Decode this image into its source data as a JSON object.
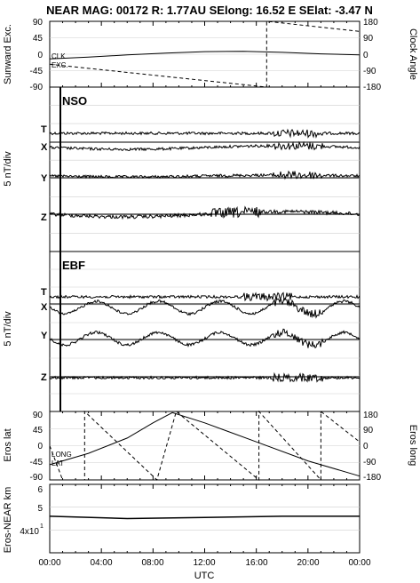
{
  "header": {
    "title": "NEAR MAG: 00172  R: 1.77AU  SElong:   16.52 E  SElat:   -3.47 N"
  },
  "chart_data": [
    {
      "type": "line",
      "panel": "sunward",
      "ylabel_left": "Sunward Exc.",
      "ylabel_right": "Clock Angle",
      "left_ticks": [
        "90",
        "45",
        "0",
        "-45",
        "-90"
      ],
      "right_ticks": [
        "180",
        "90",
        "0",
        "-90",
        "-180"
      ],
      "ylim_left": [
        -90,
        90
      ],
      "ylim_right": [
        -180,
        180
      ],
      "legend": [
        "CLK",
        "EXC."
      ],
      "series": [
        {
          "name": "CLK",
          "x_hours": [
            0,
            16.8,
            16.8,
            24
          ],
          "y": [
            -55,
            -180,
            180,
            125
          ]
        },
        {
          "name": "EXC.",
          "x_hours": [
            0,
            3,
            6,
            9,
            12,
            15,
            18,
            21,
            24
          ],
          "y": [
            -13,
            -8,
            -2,
            3,
            7,
            8,
            5,
            1,
            -2
          ]
        }
      ]
    },
    {
      "type": "line",
      "panel": "NSO",
      "label": "NSO",
      "ylabel": "5 nT/div",
      "trace_labels": [
        "T",
        "X",
        "Y",
        "Z"
      ]
    },
    {
      "type": "line",
      "panel": "EBF",
      "label": "EBF",
      "ylabel": "5 nT/div",
      "trace_labels": [
        "T",
        "X",
        "Y",
        "Z"
      ]
    },
    {
      "type": "line",
      "panel": "eros",
      "ylabel_left": "Eros lat",
      "ylabel_right": "Eros long",
      "left_ticks": [
        "90",
        "45",
        "0",
        "-45",
        "-90"
      ],
      "right_ticks": [
        "180",
        "90",
        "0",
        "-90",
        "-180"
      ],
      "ylim_left": [
        -90,
        90
      ],
      "ylim_right": [
        -180,
        180
      ],
      "legend": [
        "LONG",
        "LAT"
      ],
      "series": [
        {
          "name": "LAT",
          "x_hours": [
            0,
            3,
            6,
            8,
            9.5,
            12,
            16,
            20,
            24
          ],
          "y": [
            -50,
            -20,
            20,
            60,
            87,
            60,
            10,
            -40,
            -80
          ]
        },
        {
          "name": "LONG",
          "x_hours": [
            0,
            1,
            1,
            2.7,
            2.7,
            8.3,
            8.3,
            9.8,
            9.8,
            16.2,
            16.2,
            21,
            21,
            24
          ],
          "y": [
            0,
            -180,
            -180,
            -180,
            180,
            -180,
            -180,
            180,
            180,
            -180,
            180,
            -180,
            180,
            20
          ]
        }
      ]
    },
    {
      "type": "line",
      "panel": "distance",
      "ylabel": "Eros-NEAR km",
      "left_ticks": [
        "6",
        "5",
        "4x10"
      ],
      "tick_superscript": "1",
      "series": [
        {
          "name": "Eros-NEAR",
          "x_hours": [
            0,
            6,
            12,
            18,
            24
          ],
          "y": [
            51,
            50,
            50.5,
            51,
            51
          ]
        }
      ]
    }
  ],
  "x_axis": {
    "xlabel": "UTC",
    "tick_labels": [
      "00:00",
      "04:00",
      "08:00",
      "12:00",
      "16:00",
      "20:00",
      "00:00"
    ]
  }
}
